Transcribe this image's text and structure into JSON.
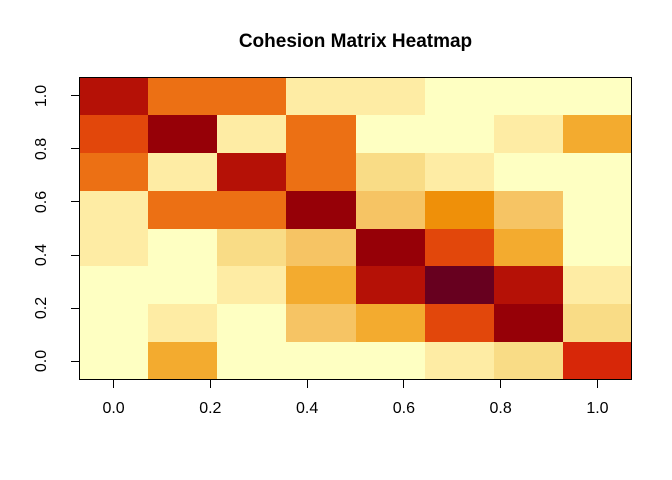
{
  "title": "Cohesion Matrix Heatmap",
  "chart_data": {
    "type": "heatmap",
    "title": "Cohesion Matrix Heatmap",
    "xlabel": "",
    "ylabel": "",
    "grid_size": 8,
    "x_ticks": {
      "labels": [
        "0.0",
        "0.2",
        "0.4",
        "0.6",
        "0.8",
        "1.0"
      ],
      "values": [
        0,
        0.2,
        0.4,
        0.6,
        0.8,
        1.0
      ]
    },
    "y_ticks": {
      "labels": [
        "0.0",
        "0.2",
        "0.4",
        "0.6",
        "0.8",
        "1.0"
      ],
      "values": [
        0,
        0.2,
        0.4,
        0.6,
        0.8,
        1.0
      ]
    },
    "x_centers": [
      0,
      0.143,
      0.286,
      0.429,
      0.571,
      0.714,
      0.857,
      1.0
    ],
    "y_centers": [
      0,
      0.143,
      0.286,
      0.429,
      0.571,
      0.714,
      0.857,
      1.0
    ],
    "axis_range": [
      -0.0714,
      1.0714
    ],
    "rows_order": "top row = y 1.0, bottom row = y 0.0",
    "legend_position": "none",
    "grid": "off",
    "palette": {
      "pale": "#FEFFC2",
      "cream": "#FEECA4",
      "sand": "#F9DC86",
      "gold": "#F6C464",
      "amber": "#F3AB2F",
      "light_orange": "#EF9009",
      "orange": "#EC7014",
      "red_orange": "#E2470B",
      "red": "#D72708",
      "brick_red": "#B51106",
      "dark_red": "#960007",
      "maroon_dark": "#67001F"
    },
    "matrix": [
      [
        "brick_red",
        "orange",
        "orange",
        "cream",
        "cream",
        "pale",
        "pale",
        "pale"
      ],
      [
        "red_orange",
        "dark_red",
        "cream",
        "orange",
        "pale",
        "pale",
        "cream",
        "amber"
      ],
      [
        "orange",
        "cream",
        "brick_red",
        "orange",
        "sand",
        "cream",
        "pale",
        "pale"
      ],
      [
        "cream",
        "orange",
        "orange",
        "dark_red",
        "gold",
        "light_orange",
        "gold",
        "pale"
      ],
      [
        "cream",
        "pale",
        "sand",
        "gold",
        "dark_red",
        "red_orange",
        "amber",
        "pale"
      ],
      [
        "pale",
        "pale",
        "cream",
        "amber",
        "brick_red",
        "maroon_dark",
        "brick_red",
        "cream"
      ],
      [
        "pale",
        "cream",
        "pale",
        "gold",
        "amber",
        "red_orange",
        "dark_red",
        "sand"
      ],
      [
        "pale",
        "amber",
        "pale",
        "pale",
        "pale",
        "cream",
        "sand",
        "red"
      ]
    ],
    "values": [
      [
        0.87,
        0.65,
        0.65,
        0.2,
        0.2,
        0.05,
        0.05,
        0.05
      ],
      [
        0.72,
        0.93,
        0.2,
        0.65,
        0.05,
        0.05,
        0.2,
        0.5
      ],
      [
        0.65,
        0.2,
        0.87,
        0.65,
        0.3,
        0.2,
        0.05,
        0.05
      ],
      [
        0.2,
        0.65,
        0.65,
        0.93,
        0.4,
        0.58,
        0.4,
        0.05
      ],
      [
        0.2,
        0.05,
        0.3,
        0.4,
        0.93,
        0.72,
        0.5,
        0.05
      ],
      [
        0.05,
        0.05,
        0.2,
        0.5,
        0.87,
        1.0,
        0.87,
        0.2
      ],
      [
        0.05,
        0.2,
        0.05,
        0.4,
        0.5,
        0.72,
        0.93,
        0.3
      ],
      [
        0.05,
        0.5,
        0.05,
        0.05,
        0.05,
        0.2,
        0.3,
        0.8
      ]
    ],
    "colors_note": {
      "background": "#FFFFFF",
      "axis_color": "#000000",
      "text_color": "#000000"
    }
  }
}
